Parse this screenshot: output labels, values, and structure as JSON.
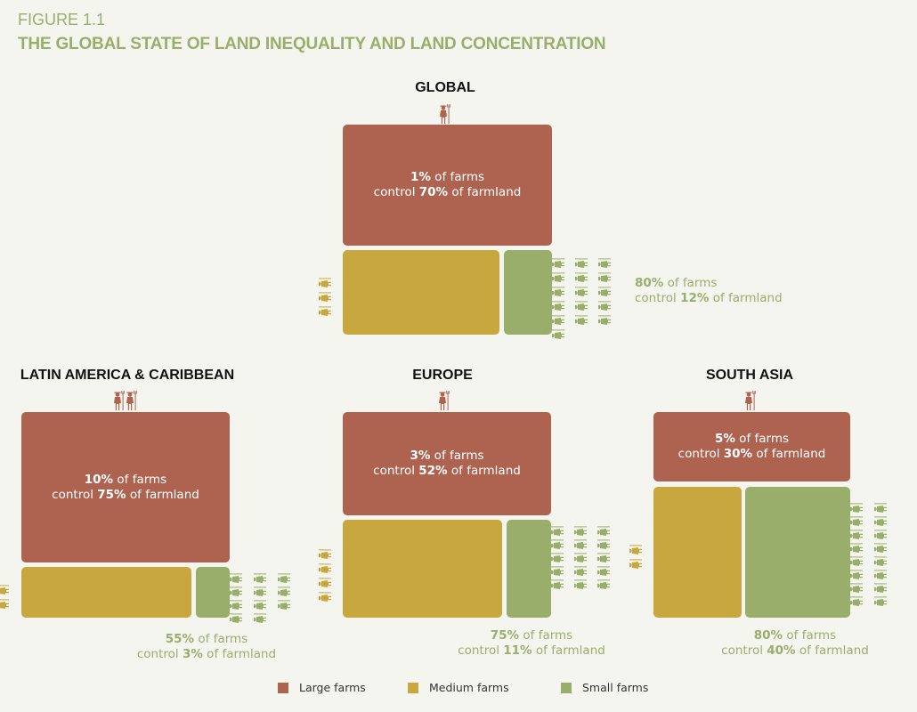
{
  "figure_label": "FIGURE 1.1",
  "title": "THE GLOBAL STATE OF LAND INEQUALITY AND LAND CONCENTRATION",
  "words": {
    "of_farms": " of farms",
    "control": "control ",
    "of_farmland": " of farmland"
  },
  "colors": {
    "large": "#ad6350",
    "medium": "#c9a73f",
    "small": "#9aae6c",
    "text_accent": "#9aae6c"
  },
  "legend": [
    {
      "label": "Large farms",
      "color": "#ad6350"
    },
    {
      "label": "Medium farms",
      "color": "#c9a73f"
    },
    {
      "label": "Small farms",
      "color": "#9aae6c"
    }
  ],
  "chart_data": {
    "type": "treemap-infographic",
    "regions": [
      {
        "name": "GLOBAL",
        "large": {
          "farms_pct": "1%",
          "land_pct": "70%"
        },
        "small": {
          "farms_pct": "80%",
          "land_pct": "12%"
        }
      },
      {
        "name": "LATIN AMERICA & CARIBBEAN",
        "large": {
          "farms_pct": "10%",
          "land_pct": "75%"
        },
        "small": {
          "farms_pct": "55%",
          "land_pct": "3%"
        }
      },
      {
        "name": "EUROPE",
        "large": {
          "farms_pct": "3%",
          "land_pct": "52%"
        },
        "small": {
          "farms_pct": "75%",
          "land_pct": "11%"
        }
      },
      {
        "name": "SOUTH ASIA",
        "large": {
          "farms_pct": "5%",
          "land_pct": "30%"
        },
        "small": {
          "farms_pct": "80%",
          "land_pct": "40%"
        }
      }
    ]
  }
}
